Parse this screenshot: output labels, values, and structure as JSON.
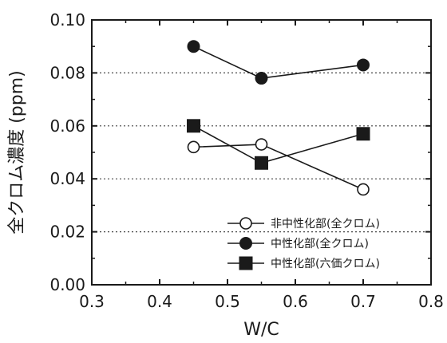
{
  "chart_data": {
    "type": "line",
    "xlabel": "W/C",
    "ylabel": "全クロム濃度 (ppm)",
    "xlim": [
      0.3,
      0.8
    ],
    "ylim": [
      0.0,
      0.1
    ],
    "xticks": [
      "0.3",
      "0.4",
      "0.5",
      "0.6",
      "0.7",
      "0.8"
    ],
    "yticks": [
      "0.00",
      "0.02",
      "0.04",
      "0.06",
      "0.08",
      "0.10"
    ],
    "grid": "horizontal-dotted",
    "legend_position": "bottom-right",
    "series": [
      {
        "name": "非中性化部(全クロム)",
        "marker": "open-circle",
        "x": [
          0.45,
          0.55,
          0.7
        ],
        "y": [
          0.052,
          0.053,
          0.036
        ]
      },
      {
        "name": "中性化部(全クロム)",
        "marker": "filled-circle",
        "x": [
          0.45,
          0.55,
          0.7
        ],
        "y": [
          0.09,
          0.078,
          0.083
        ]
      },
      {
        "name": "中性化部(六価クロム)",
        "marker": "filled-square",
        "x": [
          0.45,
          0.55,
          0.7
        ],
        "y": [
          0.06,
          0.046,
          0.057
        ]
      }
    ]
  }
}
